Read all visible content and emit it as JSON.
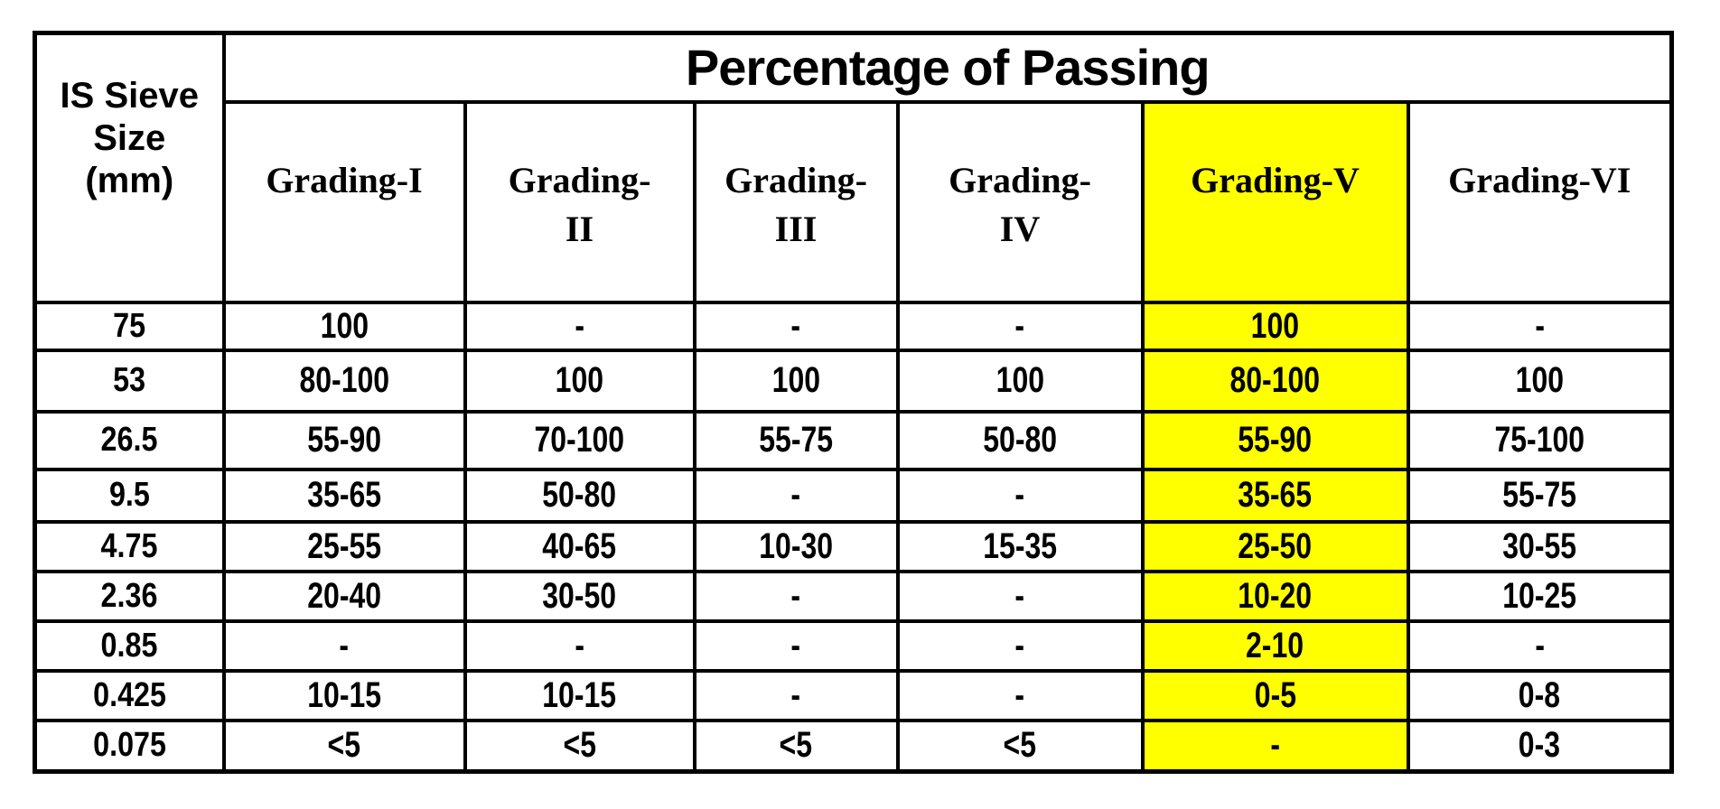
{
  "chart_data": {
    "type": "table",
    "title": "Percentage of Passing",
    "corner_header": "IS Sieve\nSize\n(mm)",
    "columns": [
      "Grading-I",
      "Grading-\nII",
      "Grading-\nIII",
      "Grading-\nIV",
      "Grading-V",
      "Grading-VI"
    ],
    "highlighted_column": "Grading-V",
    "highlight_color": "#ffff00",
    "rows": [
      {
        "sieve_size": "75",
        "values": [
          "100",
          "-",
          "-",
          "-",
          "100",
          "-"
        ]
      },
      {
        "sieve_size": "53",
        "values": [
          "80-100",
          "100",
          "100",
          "100",
          "80-100",
          "100"
        ]
      },
      {
        "sieve_size": "26.5",
        "values": [
          "55-90",
          "70-100",
          "55-75",
          "50-80",
          "55-90",
          "75-100"
        ]
      },
      {
        "sieve_size": "9.5",
        "values": [
          "35-65",
          "50-80",
          "-",
          "-",
          "35-65",
          "55-75"
        ]
      },
      {
        "sieve_size": "4.75",
        "values": [
          "25-55",
          "40-65",
          "10-30",
          "15-35",
          "25-50",
          "30-55"
        ]
      },
      {
        "sieve_size": "2.36",
        "values": [
          "20-40",
          "30-50",
          "-",
          "-",
          "10-20",
          "10-25"
        ]
      },
      {
        "sieve_size": "0.85",
        "values": [
          "-",
          "-",
          "-",
          "-",
          "2-10",
          "-"
        ]
      },
      {
        "sieve_size": "0.425",
        "values": [
          "10-15",
          "10-15",
          "-",
          "-",
          "0-5",
          "0-8"
        ]
      },
      {
        "sieve_size": "0.075",
        "values": [
          "<5",
          "<5",
          "<5",
          "<5",
          "-",
          "0-3"
        ]
      }
    ]
  }
}
